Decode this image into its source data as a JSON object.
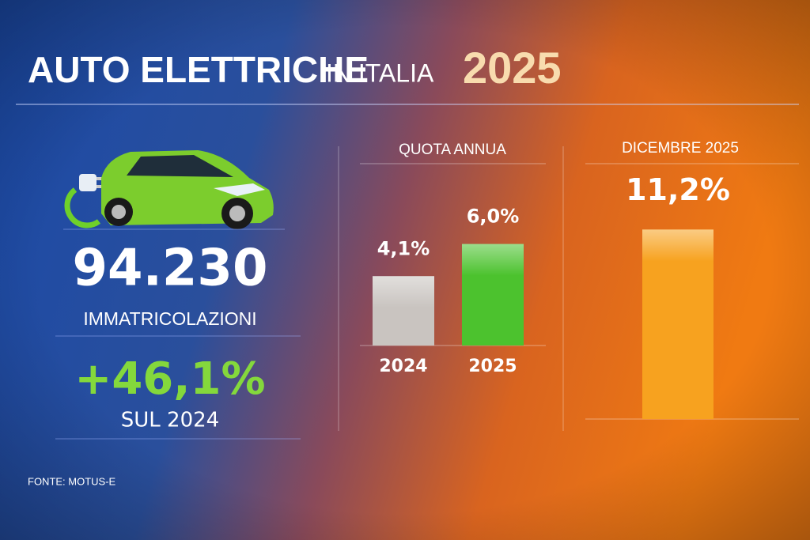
{
  "title": {
    "main": "AUTO ELETTRICHE",
    "sub": "IN ITALIA",
    "year": "2025"
  },
  "stats": {
    "registrations": "94.230",
    "registrations_label": "IMMATRICOLAZIONI",
    "growth": "+46,1%",
    "growth_label": "SUL 2024"
  },
  "source": "FONTE: MOTUS-E",
  "chart_data": [
    {
      "type": "bar",
      "title": "QUOTA ANNUA",
      "categories": [
        "2024",
        "2025"
      ],
      "values": [
        4.1,
        6.0
      ],
      "value_labels": [
        "4,1%",
        "6,0%"
      ],
      "colors": [
        "#c9c4c0",
        "#4cc22e"
      ]
    },
    {
      "type": "bar",
      "title": "DICEMBRE 2025",
      "categories": [
        null
      ],
      "values": [
        11.2
      ],
      "value_labels": [
        "11,2%"
      ],
      "colors": [
        "#f7a21f"
      ]
    }
  ]
}
